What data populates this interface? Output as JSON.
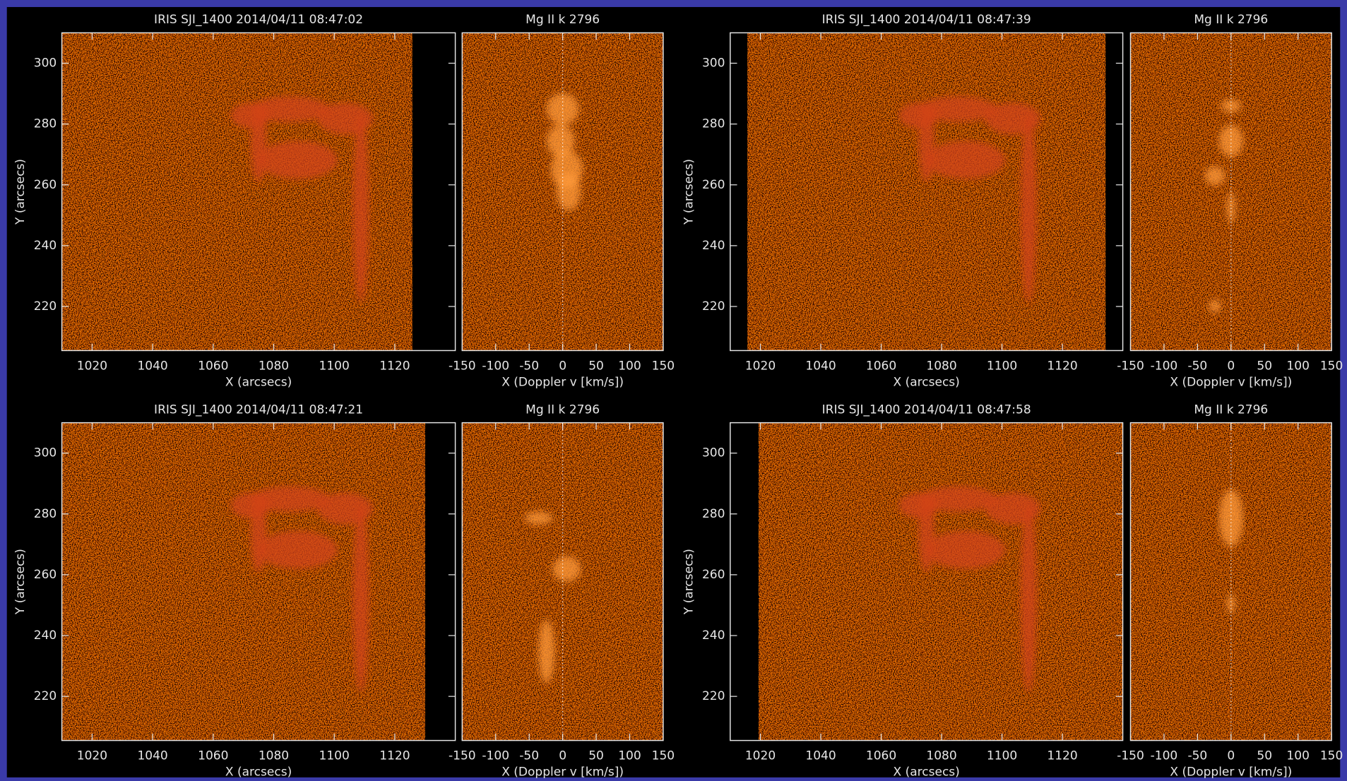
{
  "chart_data": [
    {
      "type": "image",
      "title": "IRIS SJI_1400 2014/04/11 08:47:02",
      "xlabel": "X (arcsecs)",
      "ylabel": "Y (arcsecs)",
      "xlim": [
        1010,
        1140
      ],
      "xticks": [
        1020,
        1040,
        1060,
        1080,
        1100,
        1120
      ],
      "ylim": [
        205.5,
        310
      ],
      "yticks": [
        220,
        240,
        260,
        280,
        300
      ]
    },
    {
      "type": "spectrum",
      "title": "Mg II k 2796",
      "xlabel": "X (Doppler v [km/s])",
      "xlim": [
        -150,
        150
      ],
      "xticks": [
        -150,
        -100,
        -50,
        0,
        50,
        100,
        150
      ]
    },
    {
      "type": "image",
      "title": "IRIS SJI_1400 2014/04/11 08:47:39",
      "xlabel": "X (arcsecs)",
      "ylabel": "Y (arcsecs)",
      "xlim": [
        1010,
        1140
      ],
      "xticks": [
        1020,
        1040,
        1060,
        1080,
        1100,
        1120
      ],
      "ylim": [
        205.5,
        310
      ],
      "yticks": [
        220,
        240,
        260,
        280,
        300
      ]
    },
    {
      "type": "spectrum",
      "title": "Mg II k 2796",
      "xlabel": "X (Doppler v [km/s])",
      "xlim": [
        -150,
        150
      ],
      "xticks": [
        -150,
        -100,
        -50,
        0,
        50,
        100,
        150
      ]
    },
    {
      "type": "image",
      "title": "IRIS SJI_1400 2014/04/11 08:47:21",
      "xlabel": "X (arcsecs)",
      "ylabel": "Y (arcsecs)",
      "xlim": [
        1010,
        1140
      ],
      "xticks": [
        1020,
        1040,
        1060,
        1080,
        1100,
        1120
      ],
      "ylim": [
        205.5,
        310
      ],
      "yticks": [
        220,
        240,
        260,
        280,
        300
      ]
    },
    {
      "type": "spectrum",
      "title": "Mg II k 2796",
      "xlabel": "X (Doppler v [km/s])",
      "xlim": [
        -150,
        150
      ],
      "xticks": [
        -150,
        -100,
        -50,
        0,
        50,
        100,
        150
      ]
    },
    {
      "type": "image",
      "title": "IRIS SJI_1400 2014/04/11 08:47:58",
      "xlabel": "X (arcsecs)",
      "ylabel": "Y (arcsecs)",
      "xlim": [
        1010,
        1140
      ],
      "xticks": [
        1020,
        1040,
        1060,
        1080,
        1100,
        1120
      ],
      "ylim": [
        205.5,
        310
      ],
      "yticks": [
        220,
        240,
        260,
        280,
        300
      ]
    },
    {
      "type": "spectrum",
      "title": "Mg II k 2796",
      "xlabel": "X (Doppler v [km/s])",
      "xlim": [
        -150,
        150
      ],
      "xticks": [
        -150,
        -100,
        -50,
        0,
        50,
        100,
        150
      ]
    }
  ]
}
